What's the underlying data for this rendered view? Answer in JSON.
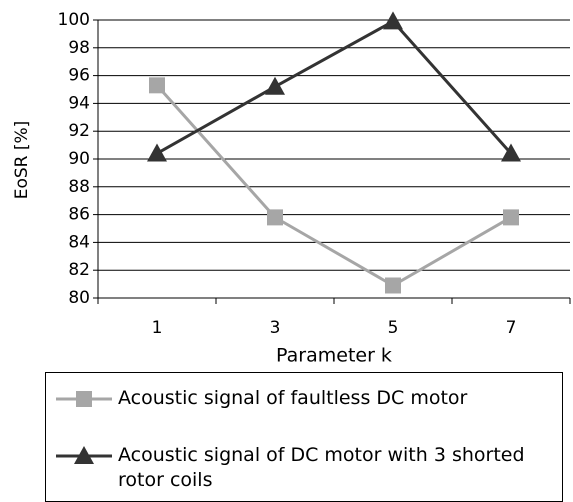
{
  "chart_data": {
    "type": "line",
    "categories": [
      "1",
      "3",
      "5",
      "7"
    ],
    "series": [
      {
        "name": "Acoustic signal of faultless DC motor",
        "color": "#a6a6a6",
        "marker": "square",
        "values": [
          95.3,
          85.8,
          80.9,
          85.8
        ]
      },
      {
        "name": "Acoustic signal of DC motor with 3 shorted rotor coils",
        "color": "#333333",
        "marker": "triangle",
        "values": [
          90.4,
          95.2,
          99.9,
          90.4
        ]
      }
    ],
    "ylabel": "EoSR [%]",
    "xlabel": "Parameter k",
    "ylim": [
      80,
      100
    ],
    "yticks": [
      80,
      82,
      84,
      86,
      88,
      90,
      92,
      94,
      96,
      98,
      100
    ],
    "grid": true
  }
}
